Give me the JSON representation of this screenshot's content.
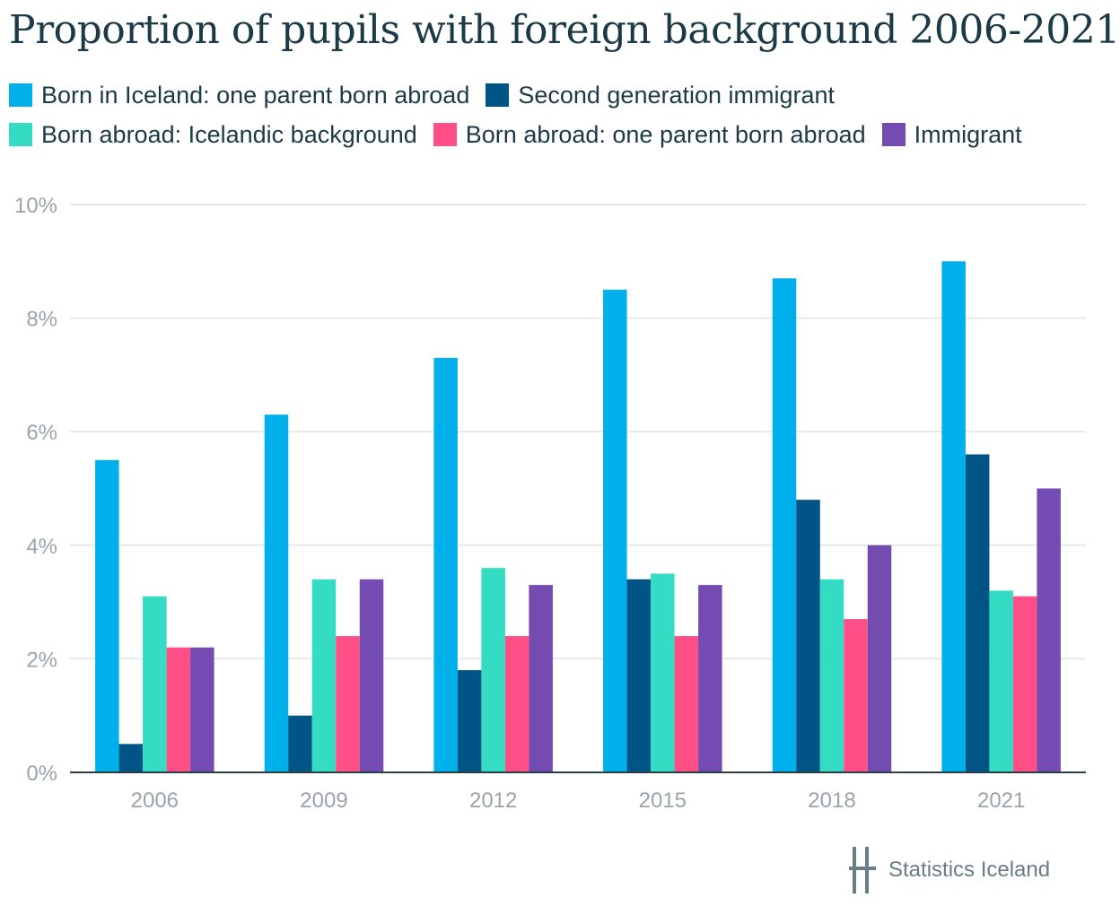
{
  "title": "Proportion of pupils with foreign background 2006-2021",
  "source": {
    "label": "Statistics Iceland",
    "icon": "statistics-iceland-logo-icon"
  },
  "chart_data": {
    "type": "bar",
    "title": "Proportion of pupils with foreign background 2006-2021",
    "xlabel": "",
    "ylabel": "",
    "categories": [
      "2006",
      "2009",
      "2012",
      "2015",
      "2018",
      "2021"
    ],
    "ylim": [
      0,
      10
    ],
    "yticks": [
      0,
      2,
      4,
      6,
      8,
      10
    ],
    "ytick_labels": [
      "0%",
      "2%",
      "4%",
      "6%",
      "8%",
      "10%"
    ],
    "grid": true,
    "legend_position": "top",
    "series": [
      {
        "name": "Born in Iceland: one parent born abroad",
        "color": "#00b0ea",
        "values": [
          5.5,
          6.3,
          7.3,
          8.5,
          8.7,
          9.0
        ]
      },
      {
        "name": "Second generation immigrant",
        "color": "#005486",
        "values": [
          0.5,
          1.0,
          1.8,
          3.4,
          4.8,
          5.6
        ]
      },
      {
        "name": "Born abroad: Icelandic background",
        "color": "#34dcc3",
        "values": [
          3.1,
          3.4,
          3.6,
          3.5,
          3.4,
          3.2
        ]
      },
      {
        "name": "Born abroad: one parent born abroad",
        "color": "#ff4f86",
        "values": [
          2.2,
          2.4,
          2.4,
          2.4,
          2.7,
          3.1
        ]
      },
      {
        "name": "Immigrant",
        "color": "#744bb1",
        "values": [
          2.2,
          3.4,
          3.3,
          3.3,
          4.0,
          5.0
        ]
      }
    ]
  }
}
